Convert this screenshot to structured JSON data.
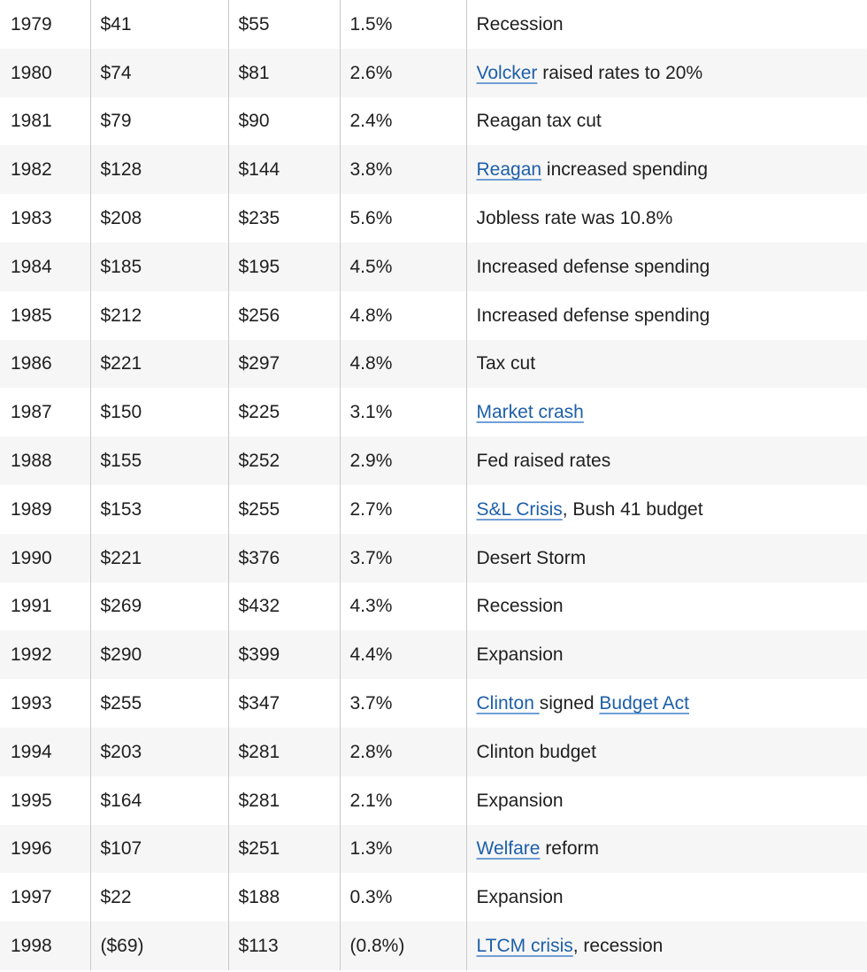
{
  "rows": [
    {
      "year": "1979",
      "deficit": "$41",
      "debt": "$55",
      "pct": "1.5%",
      "event": [
        {
          "text": "Recession"
        }
      ]
    },
    {
      "year": "1980",
      "deficit": "$74",
      "debt": "$81",
      "pct": "2.6%",
      "event": [
        {
          "text": "Volcker",
          "link": true
        },
        {
          "text": " raised rates to 20%"
        }
      ]
    },
    {
      "year": "1981",
      "deficit": "$79",
      "debt": "$90",
      "pct": "2.4%",
      "event": [
        {
          "text": "Reagan tax cut"
        }
      ]
    },
    {
      "year": "1982",
      "deficit": "$128",
      "debt": "$144",
      "pct": "3.8%",
      "event": [
        {
          "text": "Reagan",
          "link": true
        },
        {
          "text": " increased spending"
        }
      ]
    },
    {
      "year": "1983",
      "deficit": "$208",
      "debt": "$235",
      "pct": "5.6%",
      "event": [
        {
          "text": "Jobless rate was 10.8%"
        }
      ]
    },
    {
      "year": "1984",
      "deficit": "$185",
      "debt": "$195",
      "pct": "4.5%",
      "event": [
        {
          "text": "Increased defense spending"
        }
      ]
    },
    {
      "year": "1985",
      "deficit": "$212",
      "debt": "$256",
      "pct": "4.8%",
      "event": [
        {
          "text": "Increased defense spending"
        }
      ]
    },
    {
      "year": "1986",
      "deficit": "$221",
      "debt": "$297",
      "pct": "4.8%",
      "event": [
        {
          "text": "Tax cut"
        }
      ]
    },
    {
      "year": "1987",
      "deficit": "$150",
      "debt": "$225",
      "pct": "3.1%",
      "event": [
        {
          "text": "Market crash",
          "link": true
        }
      ]
    },
    {
      "year": "1988",
      "deficit": "$155",
      "debt": "$252",
      "pct": "2.9%",
      "event": [
        {
          "text": "Fed raised rates"
        }
      ]
    },
    {
      "year": "1989",
      "deficit": "$153",
      "debt": "$255",
      "pct": "2.7%",
      "event": [
        {
          "text": "S&L Crisis",
          "link": true
        },
        {
          "text": ", Bush 41 budget"
        }
      ]
    },
    {
      "year": "1990",
      "deficit": "$221",
      "debt": "$376",
      "pct": "3.7%",
      "event": [
        {
          "text": "Desert Storm"
        }
      ]
    },
    {
      "year": "1991",
      "deficit": "$269",
      "debt": "$432",
      "pct": "4.3%",
      "event": [
        {
          "text": "Recession"
        }
      ]
    },
    {
      "year": "1992",
      "deficit": "$290",
      "debt": "$399",
      "pct": "4.4%",
      "event": [
        {
          "text": "Expansion"
        }
      ]
    },
    {
      "year": "1993",
      "deficit": "$255",
      "debt": "$347",
      "pct": "3.7%",
      "event": [
        {
          "text": "Clinton ",
          "link": true
        },
        {
          "text": "signed "
        },
        {
          "text": "Budget Act",
          "link": true
        }
      ]
    },
    {
      "year": "1994",
      "deficit": "$203",
      "debt": "$281",
      "pct": "2.8%",
      "event": [
        {
          "text": "Clinton budget"
        }
      ]
    },
    {
      "year": "1995",
      "deficit": "$164",
      "debt": "$281",
      "pct": "2.1%",
      "event": [
        {
          "text": "Expansion"
        }
      ]
    },
    {
      "year": "1996",
      "deficit": "$107",
      "debt": "$251",
      "pct": "1.3%",
      "event": [
        {
          "text": "Welfare",
          "link": true
        },
        {
          "text": " reform"
        }
      ]
    },
    {
      "year": "1997",
      "deficit": "$22",
      "debt": "$188",
      "pct": "0.3%",
      "event": [
        {
          "text": "Expansion"
        }
      ]
    },
    {
      "year": "1998",
      "deficit": "($69)",
      "debt": "$113",
      "pct": "(0.8%)",
      "event": [
        {
          "text": "LTCM crisis",
          "link": true
        },
        {
          "text": ", recession"
        }
      ]
    }
  ],
  "colors": {
    "link": "#1d5fa8",
    "stripe": "#f6f6f6",
    "text": "#1f1f1f",
    "divider": "#c9c9c9"
  }
}
